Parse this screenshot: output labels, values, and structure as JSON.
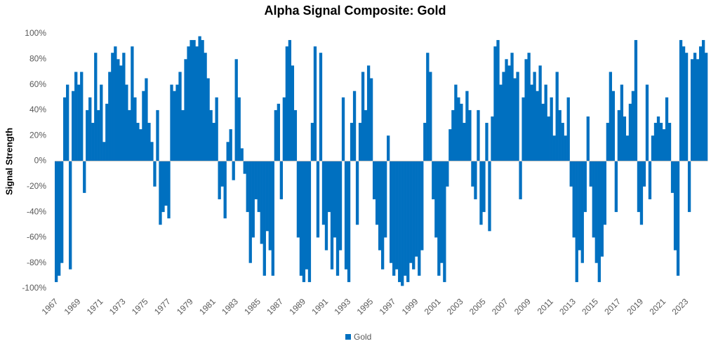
{
  "chart_data": {
    "type": "bar",
    "title": "Alpha Signal Composite: Gold",
    "y_label": "Signal Strength",
    "categories": [
      "1967",
      null,
      null,
      null,
      null,
      null,
      null,
      null,
      "1969",
      null,
      null,
      null,
      null,
      null,
      null,
      null,
      "1971",
      null,
      null,
      null,
      null,
      null,
      null,
      null,
      "1973",
      null,
      null,
      null,
      null,
      null,
      null,
      null,
      "1975",
      null,
      null,
      null,
      null,
      null,
      null,
      null,
      "1977",
      null,
      null,
      null,
      null,
      null,
      null,
      null,
      "1979",
      null,
      null,
      null,
      null,
      null,
      null,
      null,
      "1981",
      null,
      null,
      null,
      null,
      null,
      null,
      null,
      "1983",
      null,
      null,
      null,
      null,
      null,
      null,
      null,
      "1985",
      null,
      null,
      null,
      null,
      null,
      null,
      null,
      "1987",
      null,
      null,
      null,
      null,
      null,
      null,
      null,
      "1989",
      null,
      null,
      null,
      null,
      null,
      null,
      null,
      "1991",
      null,
      null,
      null,
      null,
      null,
      null,
      null,
      "1993",
      null,
      null,
      null,
      null,
      null,
      null,
      null,
      "1995",
      null,
      null,
      null,
      null,
      null,
      null,
      null,
      "1997",
      null,
      null,
      null,
      null,
      null,
      null,
      null,
      "1999",
      null,
      null,
      null,
      null,
      null,
      null,
      null,
      "2001",
      null,
      null,
      null,
      null,
      null,
      null,
      null,
      "2003",
      null,
      null,
      null,
      null,
      null,
      null,
      null,
      "2005",
      null,
      null,
      null,
      null,
      null,
      null,
      null,
      "2007",
      null,
      null,
      null,
      null,
      null,
      null,
      null,
      "2009",
      null,
      null,
      null,
      null,
      null,
      null,
      null,
      "2011",
      null,
      null,
      null,
      null,
      null,
      null,
      null,
      "2013",
      null,
      null,
      null,
      null,
      null,
      null,
      null,
      "2015",
      null,
      null,
      null,
      null,
      null,
      null,
      null,
      "2017",
      null,
      null,
      null,
      null,
      null,
      null,
      null,
      "2019",
      null,
      null,
      null,
      null,
      null,
      null,
      null,
      "2021",
      null,
      null,
      null,
      null,
      null,
      null,
      null,
      "2023",
      null,
      null,
      null,
      null,
      null,
      null,
      null
    ],
    "series": [
      {
        "name": "Gold",
        "color": "#0070c0",
        "values": [
          -95,
          -90,
          -80,
          50,
          60,
          -85,
          55,
          70,
          60,
          70,
          -25,
          40,
          50,
          30,
          85,
          40,
          60,
          15,
          45,
          70,
          85,
          90,
          80,
          75,
          85,
          60,
          40,
          90,
          50,
          30,
          25,
          55,
          65,
          30,
          15,
          -20,
          40,
          -50,
          -40,
          -35,
          -45,
          60,
          55,
          60,
          70,
          40,
          80,
          90,
          95,
          95,
          90,
          98,
          95,
          85,
          65,
          40,
          30,
          50,
          -30,
          -20,
          -45,
          15,
          25,
          -15,
          80,
          50,
          10,
          -10,
          -40,
          -80,
          -60,
          -30,
          -40,
          -65,
          -90,
          -55,
          -70,
          -90,
          40,
          45,
          -30,
          50,
          90,
          95,
          75,
          40,
          -60,
          -90,
          -95,
          -85,
          -95,
          30,
          90,
          -60,
          85,
          -50,
          -70,
          -40,
          -85,
          -60,
          -90,
          -70,
          50,
          -85,
          -95,
          30,
          55,
          -50,
          30,
          70,
          40,
          75,
          65,
          -30,
          -50,
          -70,
          -85,
          -60,
          20,
          -80,
          -90,
          -85,
          -95,
          -98,
          -90,
          -95,
          -80,
          -85,
          -75,
          -90,
          -70,
          30,
          85,
          70,
          -30,
          -60,
          -90,
          -80,
          -95,
          -20,
          25,
          40,
          60,
          50,
          45,
          30,
          55,
          40,
          -20,
          -30,
          40,
          -50,
          -40,
          30,
          -55,
          35,
          90,
          95,
          60,
          70,
          80,
          75,
          85,
          65,
          70,
          -30,
          50,
          80,
          85,
          60,
          70,
          55,
          75,
          45,
          60,
          35,
          50,
          20,
          70,
          40,
          30,
          20,
          50,
          -20,
          -60,
          -95,
          -70,
          -80,
          -40,
          35,
          -20,
          -60,
          -80,
          -95,
          -75,
          -50,
          30,
          70,
          55,
          -40,
          40,
          60,
          35,
          20,
          45,
          55,
          95,
          -40,
          -50,
          -20,
          60,
          -30,
          20,
          30,
          35,
          30,
          25,
          50,
          30,
          -25,
          -70,
          -90,
          95,
          90,
          85,
          -40,
          80,
          85,
          80,
          90,
          95,
          85
        ]
      }
    ],
    "ylim": [
      -100,
      100
    ],
    "yticks": [
      {
        "value": -100,
        "label": "-100%"
      },
      {
        "value": -80,
        "label": "-80%"
      },
      {
        "value": -60,
        "label": "-60%"
      },
      {
        "value": -40,
        "label": "-40%"
      },
      {
        "value": -20,
        "label": "-20%"
      },
      {
        "value": 0,
        "label": "0%"
      },
      {
        "value": 20,
        "label": "20%"
      },
      {
        "value": 40,
        "label": "40%"
      },
      {
        "value": 60,
        "label": "60%"
      },
      {
        "value": 80,
        "label": "80%"
      },
      {
        "value": 100,
        "label": "100%"
      }
    ],
    "grid": false,
    "legend": "bottom"
  }
}
